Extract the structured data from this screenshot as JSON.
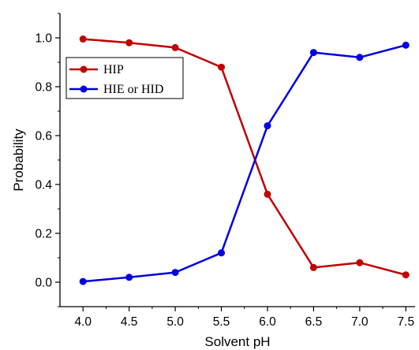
{
  "chart_data": {
    "type": "line",
    "x": [
      4.0,
      4.5,
      5.0,
      5.5,
      6.0,
      6.5,
      7.0,
      7.5
    ],
    "x_tick_labels": [
      "4.0",
      "4.5",
      "5.0",
      "5.5",
      "6.0",
      "6.5",
      "7.0",
      "7.5"
    ],
    "y_tick_labels": [
      "0.0",
      "0.2",
      "0.4",
      "0.6",
      "0.8",
      "1.0"
    ],
    "y_ticks": [
      0.0,
      0.2,
      0.4,
      0.6,
      0.8,
      1.0
    ],
    "xlabel": "Solvent pH",
    "ylabel": "Probability",
    "xlim": [
      3.75,
      7.6
    ],
    "ylim": [
      -0.1,
      1.1
    ],
    "grid": false,
    "legend_position": "top-left",
    "series": [
      {
        "name": "HIP",
        "color": "#c00000",
        "values": [
          0.995,
          0.98,
          0.96,
          0.88,
          0.36,
          0.06,
          0.08,
          0.03
        ]
      },
      {
        "name": "HIE or HID",
        "color": "#0000e0",
        "values": [
          0.003,
          0.02,
          0.04,
          0.12,
          0.64,
          0.94,
          0.92,
          0.97
        ]
      }
    ]
  }
}
